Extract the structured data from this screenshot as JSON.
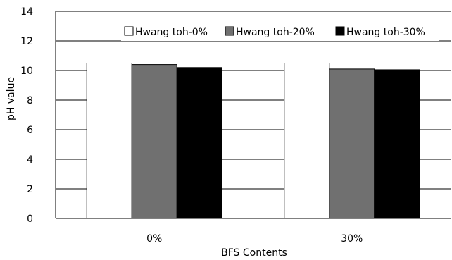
{
  "chart_data": {
    "type": "bar",
    "title": "",
    "xlabel": "BFS Contents",
    "ylabel": "pH value",
    "categories": [
      "0%",
      "30%"
    ],
    "ylim": [
      0,
      14
    ],
    "yticks": [
      0,
      2,
      4,
      6,
      8,
      10,
      12,
      14
    ],
    "grid": "horizontal",
    "legend_position": "top-right",
    "series": [
      {
        "name": "Hwang toh-0%",
        "values": [
          10.5,
          10.5
        ],
        "color": "#ffffff"
      },
      {
        "name": "Hwang toh-20%",
        "values": [
          10.4,
          10.1
        ],
        "color": "#707070"
      },
      {
        "name": "Hwang toh-30%",
        "values": [
          10.2,
          10.05
        ],
        "color": "#000000"
      }
    ]
  }
}
